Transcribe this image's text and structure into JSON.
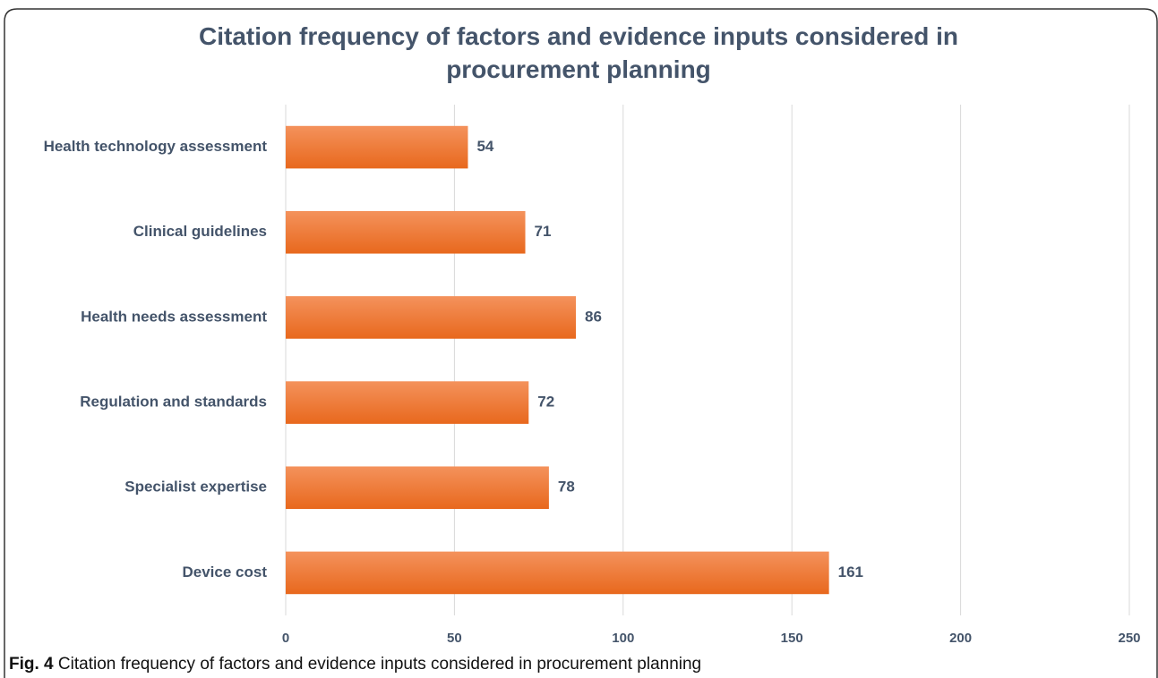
{
  "chart_data": {
    "type": "hbar",
    "title": "Citation frequency of factors and evidence inputs considered in procurement planning",
    "categories": [
      "Health technology assessment",
      "Clinical guidelines",
      "Health needs assessment",
      "Regulation and standards",
      "Specialist expertise",
      "Device cost"
    ],
    "values": [
      54,
      71,
      86,
      72,
      78,
      161
    ],
    "color": "#ee7a35",
    "xlim": [
      0,
      250
    ],
    "xticks": [
      0,
      50,
      100,
      150,
      200,
      250
    ],
    "grid": true,
    "caption_label": "Fig. 4",
    "caption": "Citation frequency of factors and evidence inputs considered in procurement planning"
  }
}
